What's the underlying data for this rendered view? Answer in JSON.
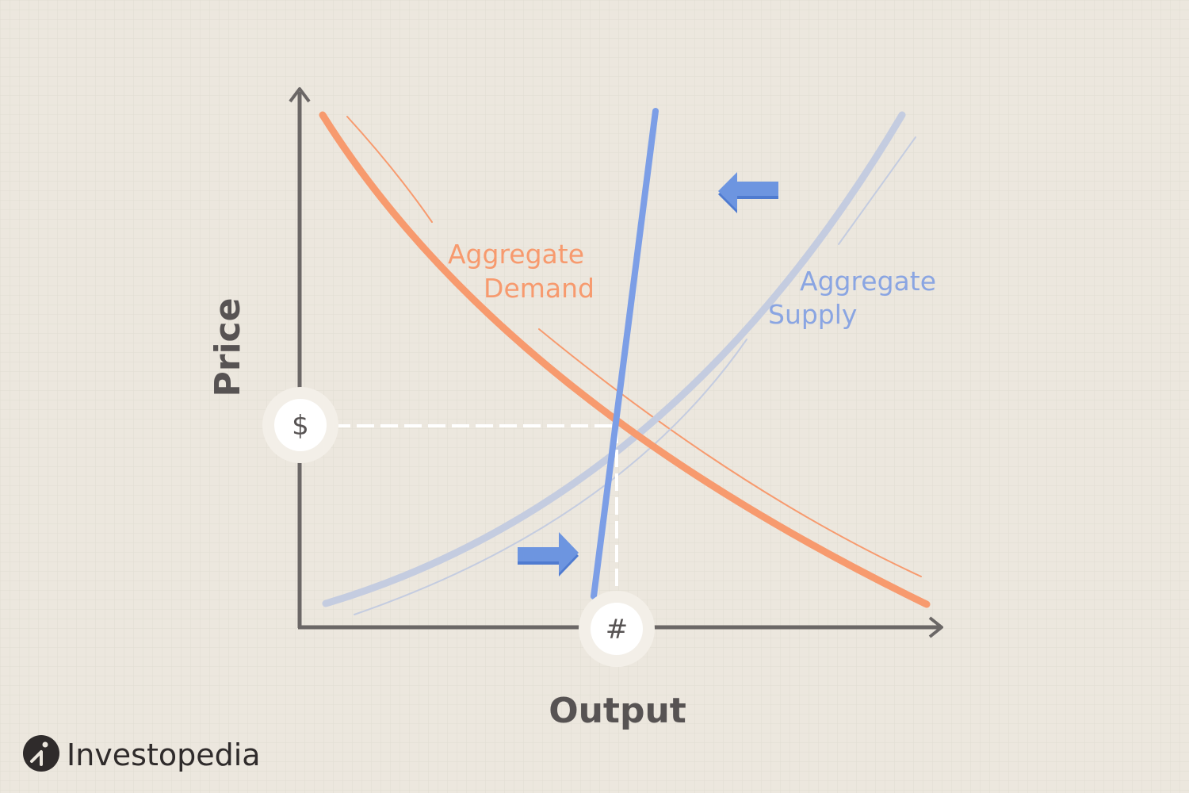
{
  "axes": {
    "x_label": "Output",
    "y_label": "Price"
  },
  "curves": {
    "demand_label": [
      "Aggregate",
      "Demand"
    ],
    "supply_label": [
      "Aggregate",
      "Supply"
    ]
  },
  "equilibrium": {
    "price_marker": "$",
    "output_marker": "#"
  },
  "shift_arrows": {
    "upper": "left",
    "lower": "right"
  },
  "brand": {
    "name": "Investopedia"
  },
  "colors": {
    "background": "#ece7de",
    "grid": "#e2ddd3",
    "axis": "#6b6766",
    "demand": "#f79a6e",
    "supply": "#c4cce0",
    "supply_label": "#8aa5e2",
    "vertical_supply": "#7c9ee6",
    "arrow": "#6d95e0",
    "marker_ring": "#f3efe8",
    "text_dark": "#575353"
  }
}
